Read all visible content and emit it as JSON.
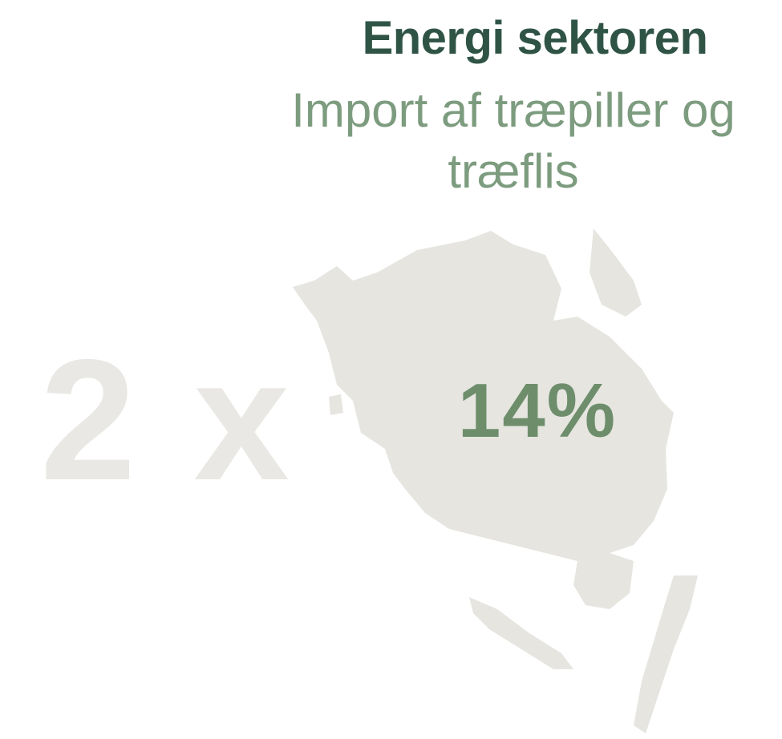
{
  "header": {
    "title": "Energi sektoren",
    "subtitle": "Import af træpiller og træflis"
  },
  "stats": {
    "multiplier": "2 x",
    "share": "14%"
  }
}
